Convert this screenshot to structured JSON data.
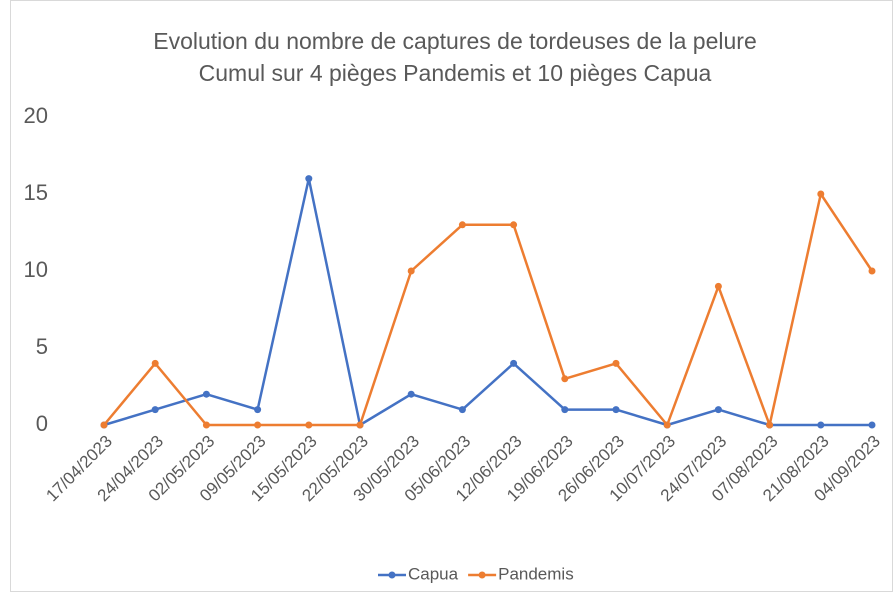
{
  "chart_data": {
    "type": "line",
    "title": "Evolution du nombre de captures de tordeuses de la pelure",
    "subtitle": "Cumul sur 4 pièges Pandemis et 10 pièges Capua",
    "categories": [
      "17/04/2023",
      "24/04/2023",
      "02/05/2023",
      "09/05/2023",
      "15/05/2023",
      "22/05/2023",
      "30/05/2023",
      "05/06/2023",
      "12/06/2023",
      "19/06/2023",
      "26/06/2023",
      "10/07/2023",
      "24/07/2023",
      "07/08/2023",
      "21/08/2023",
      "04/09/2023"
    ],
    "series": [
      {
        "name": "Capua",
        "color": "#4472c4",
        "values": [
          0,
          1,
          2,
          1,
          16,
          0,
          2,
          1,
          4,
          1,
          1,
          0,
          1,
          0,
          0,
          0
        ]
      },
      {
        "name": "Pandemis",
        "color": "#ed7d31",
        "values": [
          0,
          4,
          0,
          0,
          0,
          0,
          10,
          13,
          13,
          3,
          4,
          0,
          9,
          0,
          15,
          10
        ]
      }
    ],
    "ylim": [
      0,
      20
    ],
    "yticks": [
      0,
      5,
      10,
      15,
      20
    ],
    "grid": false,
    "legend": "bottom"
  }
}
